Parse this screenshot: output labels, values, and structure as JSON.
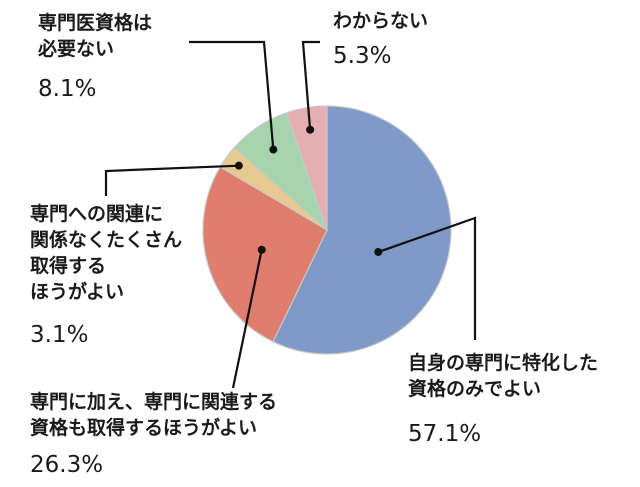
{
  "chart_data": {
    "type": "pie",
    "title": "",
    "colors": {
      "specialty_only": "#7f9ac8",
      "both": "#e07e6e",
      "related": "#e8c98f",
      "not_needed": "#a6d5ad",
      "dont_know": "#e5aeb1",
      "slice_edge": "#c8c8c8"
    },
    "slices": [
      {
        "key": "specialty_only",
        "label_lines": [
          "自身の専門に特化した",
          "資格のみでよい"
        ],
        "pct_text": "57.1%",
        "value": 57.1
      },
      {
        "key": "both",
        "label_lines": [
          "専門に加え、専門に関連する",
          "資格も取得するほうがよい"
        ],
        "pct_text": "26.3%",
        "value": 26.3
      },
      {
        "key": "related",
        "label_lines": [
          "専門への関連に",
          "関係なくたくさん",
          "取得する",
          "ほうがよい"
        ],
        "pct_text": "3.1%",
        "value": 3.1
      },
      {
        "key": "not_needed",
        "label_lines": [
          "専門医資格は",
          "必要ない"
        ],
        "pct_text": "8.1%",
        "value": 8.1
      },
      {
        "key": "dont_know",
        "label_lines": [
          "わからない"
        ],
        "pct_text": "5.3%",
        "value": 5.3
      }
    ]
  }
}
